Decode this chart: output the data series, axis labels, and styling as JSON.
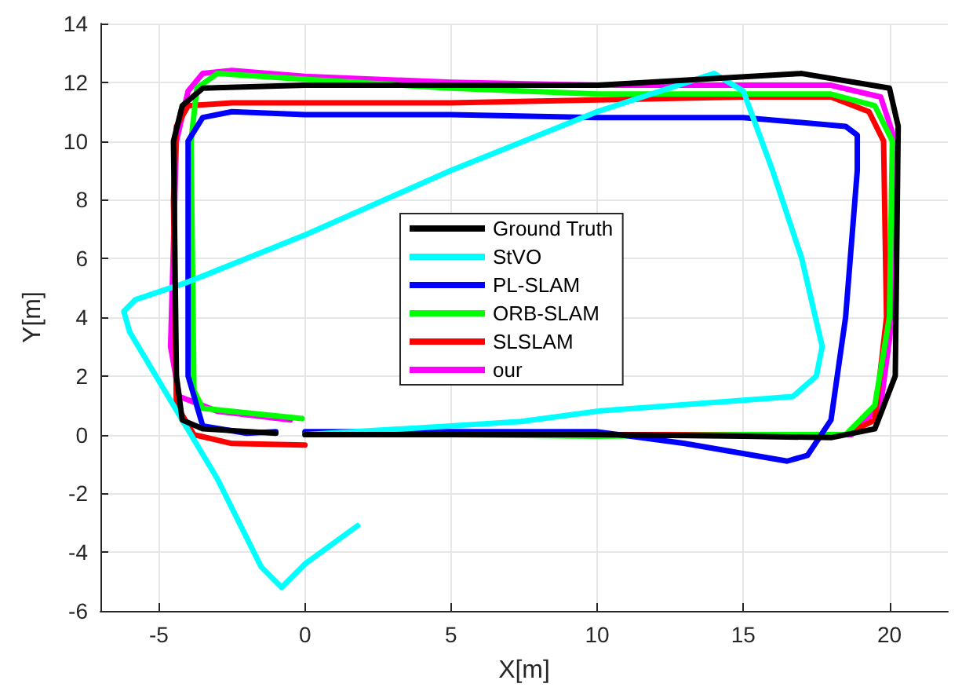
{
  "chart_data": {
    "type": "line",
    "xlabel": "X[m]",
    "ylabel": "Y[m]",
    "xlim": [
      -7,
      22
    ],
    "ylim": [
      -6,
      14
    ],
    "xticks": [
      -5,
      0,
      5,
      10,
      15,
      20
    ],
    "yticks": [
      -6,
      -4,
      -2,
      0,
      2,
      4,
      6,
      8,
      10,
      12,
      14
    ],
    "grid": true,
    "legend": "center",
    "marker": "none",
    "line_style": "solid",
    "series": [
      {
        "name": "Ground Truth",
        "color": "#000000",
        "x": [
          0,
          5,
          10,
          15,
          18,
          19.5,
          20.2,
          20.3,
          20,
          17,
          10,
          5,
          0,
          -3.5,
          -4.2,
          -4.5,
          -4.4,
          -4.2,
          -3.5,
          -1
        ],
        "values": [
          0,
          0,
          0,
          -0.05,
          -0.1,
          0.2,
          2,
          10.5,
          11.8,
          12.3,
          11.9,
          11.9,
          11.9,
          11.8,
          11.2,
          10,
          2,
          0.5,
          0.2,
          0.05
        ]
      },
      {
        "name": "StVO",
        "color": "#00ffff",
        "x": [
          1.8,
          0,
          -0.8,
          -1.5,
          -3,
          -4.5,
          -6,
          -6.2,
          -5.8,
          -4,
          0,
          5,
          10,
          14,
          15,
          16,
          17,
          17.7,
          17.5,
          16.7,
          10,
          7.4,
          5,
          0
        ],
        "values": [
          -3.1,
          -4.4,
          -5.2,
          -4.5,
          -1.5,
          1,
          3.5,
          4.2,
          4.6,
          5.2,
          6.8,
          9,
          11,
          12.3,
          11.7,
          9,
          6,
          3,
          2,
          1.3,
          0.8,
          0.45,
          0.3,
          0
        ]
      },
      {
        "name": "PL-SLAM",
        "color": "#0000ff",
        "x": [
          0,
          5,
          10,
          13,
          16.5,
          17.2,
          18,
          18.5,
          18.9,
          18.9,
          18.5,
          15,
          10,
          5,
          0,
          -2.5,
          -3.5,
          -4,
          -4,
          -3.5,
          -2,
          -1
        ],
        "values": [
          0.1,
          0.1,
          0.1,
          -0.3,
          -0.9,
          -0.7,
          0.5,
          4,
          9,
          10.2,
          10.5,
          10.8,
          10.8,
          10.9,
          10.9,
          11,
          10.8,
          10,
          2,
          0.3,
          0.05,
          0.1
        ]
      },
      {
        "name": "ORB-SLAM",
        "color": "#00ff00",
        "x": [
          -0.1,
          -3.5,
          -3.8,
          -3.9,
          -3.7,
          -3,
          0,
          5,
          10,
          15,
          18,
          19.5,
          20.1,
          20,
          19.5,
          18.5,
          15,
          10,
          5,
          0
        ],
        "values": [
          0.55,
          0.9,
          1.5,
          10,
          11.8,
          12.3,
          12.1,
          11.8,
          11.6,
          11.6,
          11.6,
          11.2,
          10,
          4,
          1,
          0,
          0,
          -0.05,
          0,
          0
        ]
      },
      {
        "name": "SLSLAM",
        "color": "#ff0000",
        "x": [
          0,
          -2.5,
          -3.8,
          -4.4,
          -4.5,
          -4.4,
          -4,
          -2.5,
          0,
          5,
          10,
          15,
          18,
          19.3,
          19.8,
          19.9,
          19.5,
          18.5,
          10,
          5,
          0
        ],
        "values": [
          -0.35,
          -0.3,
          0,
          1,
          8,
          10.5,
          11.2,
          11.3,
          11.3,
          11.3,
          11.4,
          11.5,
          11.5,
          11,
          10,
          4,
          0.5,
          0,
          0,
          0.05,
          0
        ]
      },
      {
        "name": "our",
        "color": "#ff00ff",
        "x": [
          -0.5,
          -3,
          -4.3,
          -4.6,
          -4.4,
          -4,
          -3.5,
          -2.5,
          0,
          5,
          10,
          15,
          18,
          19.7,
          20.2,
          20.1,
          19.7,
          18.7,
          10,
          0
        ],
        "values": [
          0.5,
          0.8,
          1.3,
          3,
          10,
          11.7,
          12.3,
          12.4,
          12.2,
          12,
          11.9,
          11.9,
          11.9,
          11.5,
          10,
          4,
          1,
          0,
          0,
          0.05
        ]
      }
    ]
  }
}
